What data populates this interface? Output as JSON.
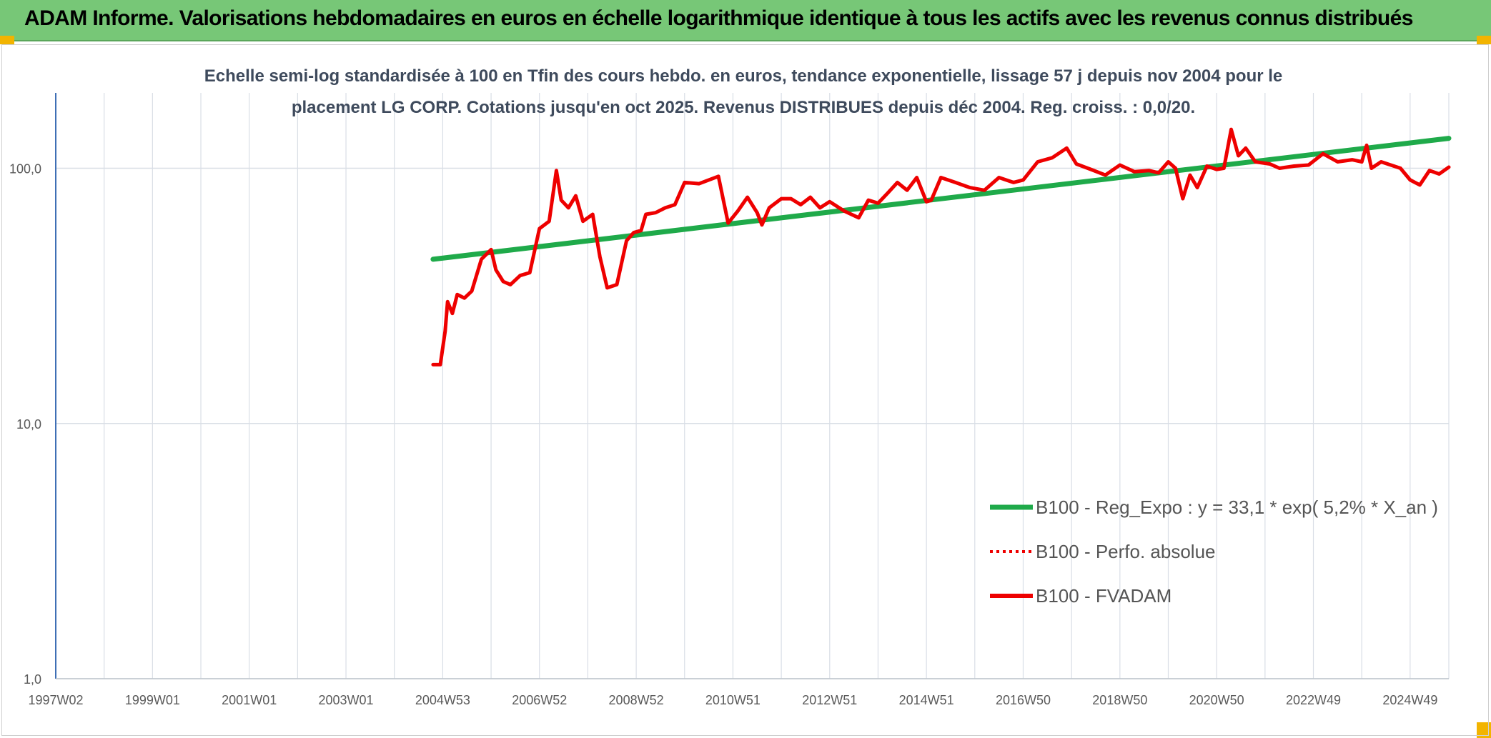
{
  "header": {
    "title": "ADAM Informe. Valorisations hebdomadaires en euros en échelle logarithmique identique à tous les actifs avec les revenus connus distribués"
  },
  "colors": {
    "header_bg": "#77c777",
    "corner_accent": "#f2b400",
    "trend": "#1faa4a",
    "series": "#ee0000",
    "grid": "#d9dee6"
  },
  "chart_data": {
    "type": "line",
    "subtitle_lines": [
      "Echelle semi-log standardisée à 100 en Tfin des cours hebdo. en euros, tendance exponentielle, lissage 57 j depuis nov 2004 pour le",
      "placement LG CORP. Cotations jusqu'en oct 2025. Revenus DISTRIBUES depuis déc 2004. Reg. croiss. : 0,0/20."
    ],
    "y_scale": "log",
    "ylim": [
      1,
      200
    ],
    "y_ticks": [
      {
        "value": 1,
        "label": "1,0"
      },
      {
        "value": 10,
        "label": "10,0"
      },
      {
        "value": 100,
        "label": "100,0"
      }
    ],
    "xlim": [
      1997.0,
      2025.8
    ],
    "x_ticks": [
      {
        "value": 1997.0,
        "label": "1997W02"
      },
      {
        "value": 1999.0,
        "label": "1999W01"
      },
      {
        "value": 2001.0,
        "label": "2001W01"
      },
      {
        "value": 2003.0,
        "label": "2003W01"
      },
      {
        "value": 2005.0,
        "label": "2004W53"
      },
      {
        "value": 2007.0,
        "label": "2006W52"
      },
      {
        "value": 2009.0,
        "label": "2008W52"
      },
      {
        "value": 2011.0,
        "label": "2010W51"
      },
      {
        "value": 2013.0,
        "label": "2012W51"
      },
      {
        "value": 2015.0,
        "label": "2014W51"
      },
      {
        "value": 2017.0,
        "label": "2016W50"
      },
      {
        "value": 2019.0,
        "label": "2018W50"
      },
      {
        "value": 2021.0,
        "label": "2020W50"
      },
      {
        "value": 2023.0,
        "label": "2022W49"
      },
      {
        "value": 2025.0,
        "label": "2024W49"
      }
    ],
    "grid": true,
    "legend_position": "bottom-right",
    "legend": [
      {
        "label": "B100 - Reg_Expo : y = 33,1 * exp( 5,2% *  X_an )",
        "style": "solid-green"
      },
      {
        "label": "B100 - Perfo. absolue",
        "style": "dotted-red"
      },
      {
        "label": "B100 - FVADAM",
        "style": "solid-red"
      }
    ],
    "series": [
      {
        "name": "B100 - Reg_Expo : y = 33,1 * exp( 5,2% *  X_an )",
        "color": "#1faa4a",
        "x": [
          2004.8,
          2025.8
        ],
        "y": [
          44,
          131
        ]
      },
      {
        "name": "B100 - FVADAM",
        "color": "#ee0000",
        "x": [
          2004.8,
          2004.95,
          2005.05,
          2005.1,
          2005.2,
          2005.3,
          2005.45,
          2005.6,
          2005.8,
          2006.0,
          2006.1,
          2006.25,
          2006.4,
          2006.6,
          2006.8,
          2007.0,
          2007.2,
          2007.35,
          2007.45,
          2007.6,
          2007.75,
          2007.9,
          2008.1,
          2008.25,
          2008.4,
          2008.6,
          2008.8,
          2008.95,
          2009.1,
          2009.2,
          2009.4,
          2009.6,
          2009.8,
          2010.0,
          2010.3,
          2010.5,
          2010.7,
          2010.9,
          2011.1,
          2011.3,
          2011.5,
          2011.6,
          2011.75,
          2012.0,
          2012.2,
          2012.4,
          2012.6,
          2012.8,
          2013.0,
          2013.3,
          2013.6,
          2013.8,
          2014.0,
          2014.2,
          2014.4,
          2014.6,
          2014.8,
          2015.0,
          2015.1,
          2015.3,
          2015.6,
          2015.9,
          2016.2,
          2016.5,
          2016.8,
          2017.0,
          2017.3,
          2017.6,
          2017.9,
          2018.1,
          2018.4,
          2018.7,
          2019.0,
          2019.3,
          2019.6,
          2019.8,
          2020.0,
          2020.15,
          2020.3,
          2020.45,
          2020.6,
          2020.8,
          2021.0,
          2021.15,
          2021.3,
          2021.45,
          2021.6,
          2021.8,
          2022.1,
          2022.3,
          2022.6,
          2022.9,
          2023.2,
          2023.5,
          2023.8,
          2024.0,
          2024.1,
          2024.2,
          2024.4,
          2024.6,
          2024.8,
          2025.0,
          2025.2,
          2025.4,
          2025.6,
          2025.8
        ],
        "y": [
          17,
          17,
          23,
          30,
          27,
          32,
          31,
          33,
          44,
          48,
          40,
          36,
          35,
          38,
          39,
          58,
          62,
          98,
          75,
          70,
          78,
          62,
          66,
          45,
          34,
          35,
          52,
          56,
          57,
          66,
          67,
          70,
          72,
          88,
          87,
          90,
          93,
          61,
          68,
          77,
          67,
          60,
          70,
          76,
          76,
          72,
          77,
          70,
          74,
          68,
          64,
          75,
          73,
          80,
          88,
          82,
          92,
          74,
          75,
          92,
          88,
          84,
          82,
          92,
          88,
          90,
          106,
          110,
          120,
          104,
          99,
          94,
          103,
          97,
          98,
          96,
          106,
          100,
          76,
          94,
          84,
          102,
          99,
          100,
          142,
          112,
          120,
          106,
          104,
          100,
          102,
          103,
          114,
          106,
          108,
          106,
          123,
          100,
          106,
          103,
          100,
          90,
          86,
          98,
          95,
          101
        ]
      }
    ]
  }
}
